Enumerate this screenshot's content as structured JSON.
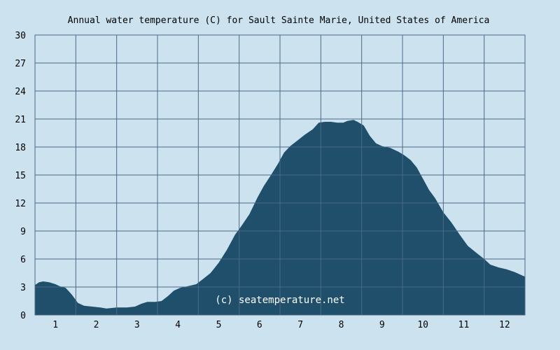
{
  "colors": {
    "background": "#cce3ef",
    "plot_background": "#cce3ef",
    "area_fill": "#1f4f6a",
    "grid": "#4a6a85",
    "text": "#000000",
    "watermark": "#ffffff"
  },
  "chart_data": {
    "type": "area",
    "title": "Annual water temperature (C) for Sault Sainte Marie, United States of America",
    "xlabel": "",
    "ylabel": "",
    "x_tick_labels": [
      "1",
      "2",
      "3",
      "4",
      "5",
      "6",
      "7",
      "8",
      "9",
      "10",
      "11",
      "12"
    ],
    "y_tick_labels": [
      "0",
      "3",
      "6",
      "9",
      "12",
      "15",
      "18",
      "21",
      "24",
      "27",
      "30"
    ],
    "y_ticks": [
      0,
      3,
      6,
      9,
      12,
      15,
      18,
      21,
      24,
      27,
      30
    ],
    "xlim": [
      0.5,
      12.5
    ],
    "ylim": [
      0,
      30
    ],
    "grid": true,
    "annotation": "(c) seatemperature.net",
    "series": [
      {
        "x": [
          0.5,
          0.6,
          0.7,
          0.85,
          1.0,
          1.1,
          1.25,
          1.4,
          1.55,
          1.7,
          1.9,
          2.1,
          2.25,
          2.5,
          2.75,
          2.95,
          3.1,
          3.25,
          3.45,
          3.6,
          3.75,
          3.9,
          4.05,
          4.25,
          4.45,
          4.6,
          4.8,
          5.0,
          5.2,
          5.4,
          5.55,
          5.75,
          5.95,
          6.1,
          6.25,
          6.45,
          6.6,
          6.75,
          6.9,
          7.1,
          7.3,
          7.45,
          7.6,
          7.75,
          7.9,
          8.05,
          8.15,
          8.3,
          8.4,
          8.55,
          8.7,
          8.85,
          9.0,
          9.2,
          9.4,
          9.55,
          9.7,
          9.85,
          10.0,
          10.15,
          10.3,
          10.5,
          10.7,
          10.9,
          11.1,
          11.3,
          11.5,
          11.65,
          11.85,
          12.05,
          12.25,
          12.45,
          12.5
        ],
        "values": [
          3.2,
          3.5,
          3.6,
          3.5,
          3.3,
          3.1,
          2.9,
          2.2,
          1.3,
          1.0,
          0.9,
          0.8,
          0.7,
          0.8,
          0.8,
          0.9,
          1.2,
          1.4,
          1.4,
          1.5,
          2.0,
          2.6,
          2.9,
          3.1,
          3.3,
          3.8,
          4.5,
          5.6,
          7.0,
          8.6,
          9.5,
          10.8,
          12.6,
          13.8,
          14.8,
          16.2,
          17.4,
          18.1,
          18.6,
          19.3,
          19.9,
          20.6,
          20.7,
          20.7,
          20.6,
          20.6,
          20.8,
          20.9,
          20.7,
          20.3,
          19.2,
          18.4,
          18.1,
          17.9,
          17.5,
          17.1,
          16.6,
          15.8,
          14.6,
          13.4,
          12.5,
          11.0,
          9.9,
          8.6,
          7.4,
          6.7,
          6.0,
          5.4,
          5.1,
          4.9,
          4.6,
          4.2,
          4.1
        ]
      }
    ]
  }
}
